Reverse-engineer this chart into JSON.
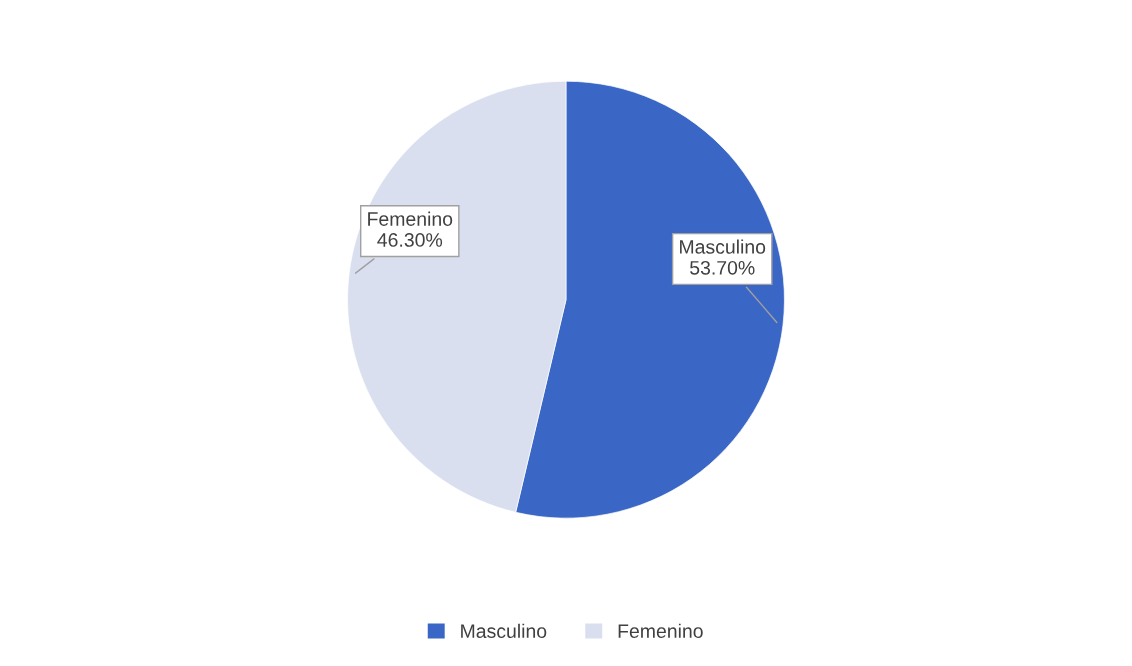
{
  "chart_data": {
    "type": "pie",
    "categories": [
      "Masculino",
      "Femenino"
    ],
    "values": [
      53.7,
      46.3
    ],
    "value_labels": [
      "53.70%",
      "46.30%"
    ],
    "colors": [
      "#3a67c6",
      "#d9dfee"
    ],
    "legend": "bottom"
  }
}
